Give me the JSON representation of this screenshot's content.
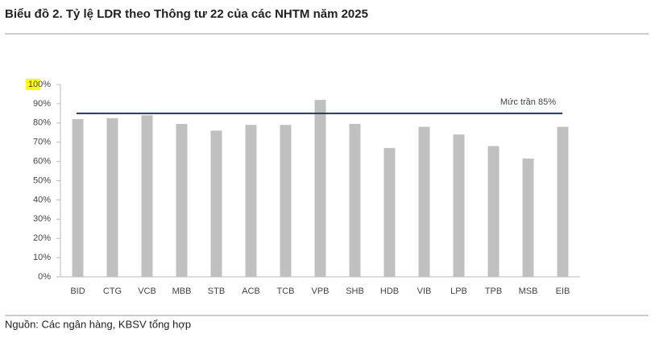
{
  "chart_data": {
    "type": "bar",
    "title": "Biểu đồ 2. Tỷ lệ LDR theo Thông tư 22 của các NHTM năm 2025",
    "categories": [
      "BID",
      "CTG",
      "VCB",
      "MBB",
      "STB",
      "ACB",
      "TCB",
      "VPB",
      "SHB",
      "HDB",
      "VIB",
      "LPB",
      "TPB",
      "MSB",
      "EIB"
    ],
    "values": [
      82,
      82.5,
      84,
      79.5,
      76,
      79,
      79,
      92,
      79.5,
      67,
      78,
      74,
      68,
      61.5,
      78
    ],
    "color": "#c0c0c0",
    "ylim": [
      0,
      100
    ],
    "yticks": [
      {
        "value": 0,
        "label": "0%"
      },
      {
        "value": 10,
        "label": "10%"
      },
      {
        "value": 20,
        "label": "20%"
      },
      {
        "value": 30,
        "label": "30%"
      },
      {
        "value": 40,
        "label": "40%"
      },
      {
        "value": 50,
        "label": "50%"
      },
      {
        "value": 60,
        "label": "60%"
      },
      {
        "value": 70,
        "label": "70%"
      },
      {
        "value": 80,
        "label": "80%"
      },
      {
        "value": 90,
        "label": "90%"
      },
      {
        "value": 100,
        "label": "100%"
      }
    ],
    "grid": false,
    "reference_line": {
      "value": 85,
      "label": "Mức trần 85%",
      "color": "#1f3864"
    },
    "source": "Nguồn: Các ngân hàng, KBSV tổng hợp"
  }
}
